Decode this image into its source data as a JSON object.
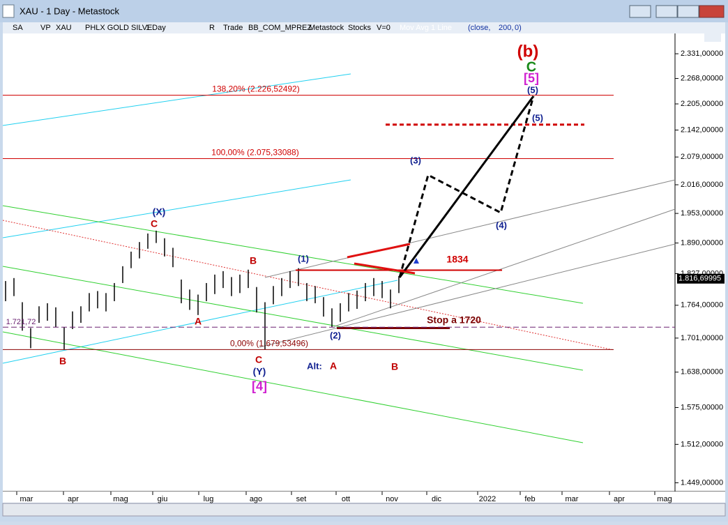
{
  "window": {
    "title": "XAU - 1 Day - Metastock"
  },
  "toolbar": [
    "SA",
    "VP",
    "XAU",
    "PHLX GOLD SILVE",
    "1 Day",
    "R",
    "Trade",
    "BB_COM_MPREZ",
    "Metastock",
    "Stocks",
    "V=0",
    "Mov Avg 1 Line",
    "(close,",
    "200,",
    "0)"
  ],
  "chart_data": {
    "type": "ohlc",
    "log_scale": true,
    "x_labels": [
      "mar",
      "apr",
      "mag",
      "giu",
      "lug",
      "ago",
      "set",
      "ott",
      "nov",
      "dic",
      "2022",
      "feb",
      "mar",
      "apr",
      "mag"
    ],
    "ylim": [
      1435,
      2384
    ],
    "yticks": [
      {
        "value": 2331,
        "label": "2.331,00000"
      },
      {
        "value": 2268,
        "label": "2.268,00000"
      },
      {
        "value": 2205,
        "label": "2.205,00000"
      },
      {
        "value": 2142,
        "label": "2.142,00000"
      },
      {
        "value": 2079,
        "label": "2.079,00000"
      },
      {
        "value": 2016,
        "label": "2.016,00000"
      },
      {
        "value": 1953,
        "label": "1.953,00000"
      },
      {
        "value": 1890,
        "label": "1.890,00000"
      },
      {
        "value": 1827,
        "label": "1.827,00000"
      },
      {
        "value": 1764,
        "label": "1.764,00000"
      },
      {
        "value": 1701,
        "label": "1.701,00000"
      },
      {
        "value": 1638,
        "label": "1.638,00000"
      },
      {
        "value": 1575,
        "label": "1.575,00000"
      },
      {
        "value": 1512,
        "label": "1.512,00000"
      },
      {
        "value": 1449,
        "label": "1.449,00000"
      }
    ],
    "last_price": {
      "value": 1816.69995,
      "label": "1.816,69995"
    },
    "series": [
      {
        "name": "XAU",
        "color": "#000000",
        "high": [
          1812,
          1818,
          1770,
          1720,
          1762,
          1768,
          1760,
          1722,
          1752,
          1762,
          1788,
          1792,
          1788,
          1808,
          1842,
          1872,
          1892,
          1910,
          1916,
          1900,
          1880,
          1815,
          1795,
          1785,
          1808,
          1825,
          1832,
          1820,
          1825,
          1835,
          1800,
          1770,
          1802,
          1818,
          1832,
          1838,
          1808,
          1802,
          1780,
          1758,
          1768,
          1788,
          1793,
          1808,
          1818,
          1812,
          1795,
          1822
        ],
        "low": [
          1772,
          1782,
          1715,
          1682,
          1730,
          1734,
          1722,
          1680,
          1718,
          1730,
          1752,
          1758,
          1752,
          1772,
          1808,
          1838,
          1858,
          1878,
          1890,
          1862,
          1840,
          1768,
          1755,
          1745,
          1772,
          1786,
          1798,
          1782,
          1788,
          1798,
          1750,
          1680,
          1766,
          1782,
          1798,
          1802,
          1772,
          1768,
          1742,
          1722,
          1732,
          1752,
          1757,
          1772,
          1782,
          1778,
          1758,
          1788
        ]
      }
    ],
    "fib_levels": [
      {
        "value": 2226.52492,
        "label": "138,20% (2.226,52492)",
        "color": "#d00000"
      },
      {
        "value": 2075.33088,
        "label": "100,00% (2.075,33088)",
        "color": "#d00000"
      },
      {
        "value": 1679.53496,
        "label": "0,00% (1.679,53496)",
        "color": "#8b0000"
      }
    ],
    "levels": [
      {
        "value": 2155,
        "color": "#d00000",
        "dash": true
      },
      {
        "value": 1834,
        "label": "1834",
        "color": "#d00000",
        "dash": false
      },
      {
        "value": 1720,
        "label": "Stop a 1720",
        "color": "#7a0000",
        "dash": false
      },
      {
        "value": 1721.72,
        "label": "1.721,72",
        "color": "#6a2070",
        "dash": true
      }
    ],
    "annotations": [
      {
        "text": "(b)",
        "color": "#d00000"
      },
      {
        "text": "C",
        "color": "#1a8a1a"
      },
      {
        "text": "[5]",
        "color": "#d020d0"
      },
      {
        "text": "(5)",
        "color": "#102090"
      },
      {
        "text": "(5)",
        "color": "#102090"
      },
      {
        "text": "(3)",
        "color": "#102090"
      },
      {
        "text": "(4)",
        "color": "#102090"
      },
      {
        "text": "(1)",
        "color": "#102090"
      },
      {
        "text": "(2)",
        "color": "#102090"
      },
      {
        "text": "B",
        "color": "#c00000"
      },
      {
        "text": "A",
        "color": "#c00000"
      },
      {
        "text": "C",
        "color": "#c00000"
      },
      {
        "text": "(X)",
        "color": "#102090"
      },
      {
        "text": "B",
        "color": "#c00000"
      },
      {
        "text": "C",
        "color": "#c00000"
      },
      {
        "text": "(Y)",
        "color": "#102090"
      },
      {
        "text": "[4]",
        "color": "#d020d0"
      },
      {
        "text": "Alt:",
        "color": "#102090"
      },
      {
        "text": "A",
        "color": "#c00000"
      },
      {
        "text": "B",
        "color": "#c00000"
      }
    ]
  }
}
